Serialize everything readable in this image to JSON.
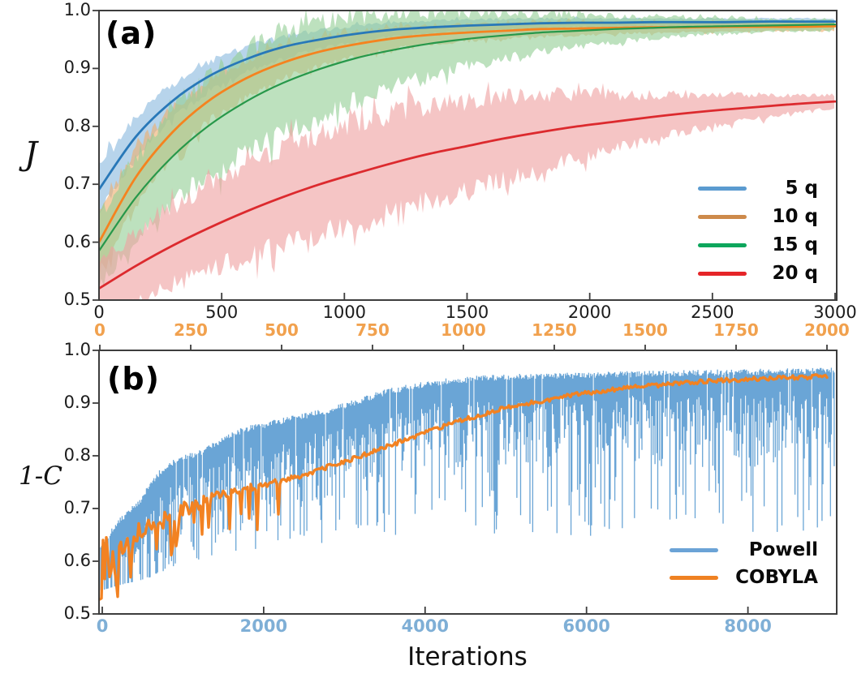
{
  "chart_data": [
    {
      "id": "a",
      "type": "line",
      "label": "(a)",
      "ylabel": "J",
      "xlim": [
        0,
        3000
      ],
      "ylim": [
        0.5,
        1.0
      ],
      "grid": false,
      "legend_position": "lower right",
      "x_tick_values": [
        0,
        500,
        1000,
        1500,
        2000,
        2500,
        3000
      ],
      "x_tick_labels": [
        "0",
        "500",
        "1000",
        "1500",
        "2000",
        "2500",
        "3000"
      ],
      "x_tick_color": "#1c1c1c",
      "y_tick_values": [
        1.0,
        0.9,
        0.8,
        0.7,
        0.6,
        0.5
      ],
      "y_tick_labels": [
        "1.0",
        "0.9",
        "0.8",
        "0.7",
        "0.6",
        "0.5"
      ],
      "y_tick_color": "#1c1c1c",
      "legend": [
        {
          "label": "5 q",
          "swatch_color": "#5b9bd0"
        },
        {
          "label": "10 q",
          "swatch_color": "#cd8a4b"
        },
        {
          "label": "15 q",
          "swatch_color": "#0da65c"
        },
        {
          "label": "20 q",
          "swatch_color": "#e52528"
        }
      ],
      "x": [
        0,
        150,
        300,
        450,
        600,
        750,
        900,
        1050,
        1200,
        1350,
        1500,
        1650,
        1800,
        1950,
        2100,
        2250,
        2400,
        2550,
        2700,
        2850,
        3000
      ],
      "series": [
        {
          "name": "5 q",
          "line_color": "#2878b8",
          "band_color": "#8abade",
          "mean": [
            0.691,
            0.782,
            0.844,
            0.887,
            0.916,
            0.937,
            0.95,
            0.96,
            0.967,
            0.971,
            0.974,
            0.976,
            0.978,
            0.979,
            0.979,
            0.98,
            0.98,
            0.98,
            0.981,
            0.981,
            0.981
          ],
          "band_halfwidth": [
            0.039,
            0.033,
            0.028,
            0.024,
            0.021,
            0.018,
            0.015,
            0.013,
            0.012,
            0.011,
            0.01,
            0.009,
            0.008,
            0.007,
            0.007,
            0.006,
            0.006,
            0.006,
            0.005,
            0.005,
            0.005
          ]
        },
        {
          "name": "10 q",
          "line_color": "#f5831f",
          "band_color": "#eeae70",
          "mean": [
            0.6,
            0.712,
            0.79,
            0.845,
            0.883,
            0.91,
            0.929,
            0.942,
            0.952,
            0.958,
            0.962,
            0.965,
            0.968,
            0.969,
            0.97,
            0.971,
            0.971,
            0.972,
            0.972,
            0.972,
            0.973
          ],
          "band_halfwidth": [
            0.055,
            0.047,
            0.041,
            0.035,
            0.031,
            0.027,
            0.023,
            0.021,
            0.018,
            0.016,
            0.014,
            0.013,
            0.012,
            0.011,
            0.01,
            0.009,
            0.008,
            0.008,
            0.007,
            0.007,
            0.007
          ]
        },
        {
          "name": "15 q",
          "line_color": "#27984a",
          "band_color": "#94cf96",
          "mean": [
            0.585,
            0.677,
            0.748,
            0.802,
            0.843,
            0.875,
            0.899,
            0.918,
            0.932,
            0.943,
            0.951,
            0.957,
            0.962,
            0.965,
            0.968,
            0.97,
            0.972,
            0.973,
            0.974,
            0.975,
            0.976
          ],
          "band_halfwidth": [
            0.058,
            0.068,
            0.077,
            0.083,
            0.086,
            0.085,
            0.08,
            0.072,
            0.063,
            0.054,
            0.046,
            0.038,
            0.032,
            0.026,
            0.022,
            0.018,
            0.015,
            0.013,
            0.011,
            0.01,
            0.009
          ]
        },
        {
          "name": "20 q",
          "line_color": "#dc2a2e",
          "band_color": "#efa1a1",
          "mean": [
            0.52,
            0.559,
            0.594,
            0.625,
            0.653,
            0.678,
            0.7,
            0.719,
            0.737,
            0.753,
            0.766,
            0.779,
            0.79,
            0.8,
            0.808,
            0.816,
            0.823,
            0.829,
            0.834,
            0.839,
            0.843
          ],
          "band_halfwidth": [
            0.045,
            0.055,
            0.064,
            0.071,
            0.077,
            0.081,
            0.084,
            0.085,
            0.084,
            0.081,
            0.076,
            0.069,
            0.061,
            0.053,
            0.045,
            0.037,
            0.03,
            0.024,
            0.019,
            0.014,
            0.011
          ]
        }
      ]
    },
    {
      "id": "b",
      "type": "line",
      "label": "(b)",
      "ylabel": "1-C",
      "xlabel": "Iterations",
      "ylim": [
        0.5,
        1.0
      ],
      "grid": false,
      "legend_position": "lower right",
      "x_bottom": {
        "lim": [
          0,
          9100
        ],
        "tick_values": [
          0,
          2000,
          4000,
          6000,
          8000
        ],
        "tick_labels": [
          "0",
          "2000",
          "4000",
          "6000",
          "8000"
        ],
        "tick_label_color": "#7fafd6"
      },
      "x_top": {
        "lim": [
          0,
          2000
        ],
        "tick_values": [
          0,
          250,
          500,
          750,
          1000,
          1250,
          1500,
          1750,
          2000
        ],
        "tick_labels": [
          "0",
          "250",
          "500",
          "750",
          "1000",
          "1250",
          "1500",
          "1750",
          "2000"
        ],
        "tick_label_color": "#f1a14e"
      },
      "y_tick_values": [
        1.0,
        0.9,
        0.8,
        0.7,
        0.6,
        0.5
      ],
      "y_tick_labels": [
        "1.0",
        "0.9",
        "0.8",
        "0.7",
        "0.6",
        "0.5"
      ],
      "y_tick_color": "#1c1c1c",
      "legend": [
        {
          "label": "Powell",
          "swatch_color": "#6ba3d6"
        },
        {
          "label": "COBYLA",
          "swatch_color": "#ef8122"
        }
      ],
      "series": [
        {
          "name": "Powell",
          "style": "noisy_fill",
          "axis": "bottom",
          "color": "#5f9ed3",
          "noise_seed": 1337,
          "x": [
            0,
            150,
            300,
            450,
            600,
            750,
            900,
            1100,
            1300,
            1500,
            1750,
            2000,
            2400,
            2770,
            3100,
            3500,
            3800,
            4200,
            4650,
            5200,
            6000,
            7000,
            8000,
            9100
          ],
          "envelope_top": [
            0.63,
            0.665,
            0.69,
            0.71,
            0.745,
            0.775,
            0.79,
            0.8,
            0.812,
            0.83,
            0.85,
            0.858,
            0.872,
            0.885,
            0.9,
            0.92,
            0.931,
            0.94,
            0.946,
            0.95,
            0.953,
            0.956,
            0.959,
            0.962
          ],
          "envelope_floor": [
            0.545,
            0.552,
            0.558,
            0.563,
            0.57,
            0.578,
            0.588,
            0.598,
            0.605,
            0.612,
            0.618,
            0.622,
            0.627,
            0.63,
            0.632,
            0.635,
            0.637,
            0.638,
            0.64,
            0.64,
            0.641,
            0.643,
            0.645,
            0.648
          ]
        },
        {
          "name": "COBYLA",
          "style": "noisy_line",
          "axis": "top",
          "color": "#f28222",
          "noise_seed": 77,
          "noise_amp0": 0.045,
          "noise_decay": 160,
          "x": [
            0,
            100,
            200,
            300,
            400,
            500,
            600,
            700,
            800,
            900,
            1000,
            1100,
            1200,
            1300,
            1400,
            1500,
            1600,
            1700,
            1800,
            1900,
            2000
          ],
          "y": [
            0.6,
            0.65,
            0.69,
            0.718,
            0.738,
            0.752,
            0.772,
            0.795,
            0.82,
            0.845,
            0.868,
            0.888,
            0.902,
            0.915,
            0.925,
            0.932,
            0.938,
            0.943,
            0.946,
            0.948,
            0.951
          ]
        }
      ]
    }
  ]
}
